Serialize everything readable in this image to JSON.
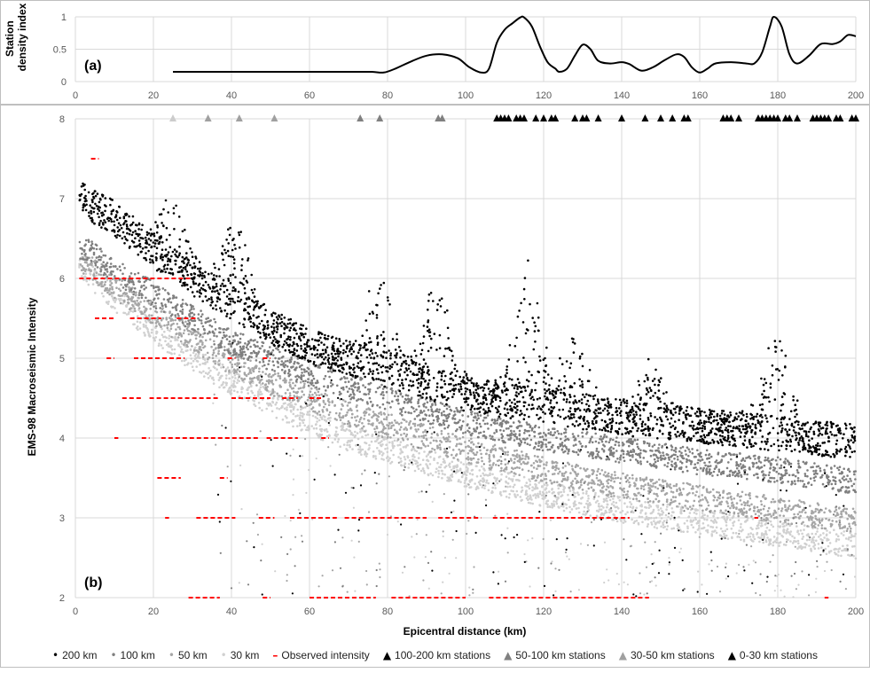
{
  "chart_data": [
    {
      "type": "line",
      "panel_label": "(a)",
      "ylabel_lines": [
        "Station",
        "density index"
      ],
      "xlim": [
        0,
        200
      ],
      "ylim": [
        0,
        1
      ],
      "x_ticks": [
        0,
        20,
        40,
        60,
        80,
        100,
        120,
        140,
        160,
        180,
        200
      ],
      "y_ticks": [
        0,
        0.5,
        1
      ],
      "grid": true,
      "series": [
        {
          "color": "#000000",
          "x": [
            25,
            30,
            40,
            50,
            60,
            70,
            76,
            79,
            82,
            86,
            90,
            94,
            98,
            101,
            104,
            106,
            108,
            110,
            112,
            114,
            115,
            117,
            119,
            121,
            123,
            124,
            126,
            128,
            130,
            132,
            134,
            137,
            140,
            142,
            145,
            148,
            151,
            154,
            156,
            158,
            160,
            162,
            164,
            168,
            172,
            174,
            176,
            178,
            179,
            181,
            183,
            185,
            188,
            191,
            194,
            196,
            198,
            200
          ],
          "y": [
            0.15,
            0.15,
            0.15,
            0.15,
            0.15,
            0.15,
            0.15,
            0.14,
            0.2,
            0.31,
            0.4,
            0.42,
            0.36,
            0.22,
            0.14,
            0.2,
            0.6,
            0.8,
            0.9,
            0.99,
            0.99,
            0.85,
            0.55,
            0.3,
            0.2,
            0.15,
            0.2,
            0.4,
            0.57,
            0.5,
            0.32,
            0.28,
            0.3,
            0.27,
            0.17,
            0.22,
            0.33,
            0.42,
            0.38,
            0.22,
            0.14,
            0.2,
            0.28,
            0.3,
            0.28,
            0.28,
            0.45,
            0.85,
            1.0,
            0.85,
            0.42,
            0.28,
            0.4,
            0.58,
            0.58,
            0.62,
            0.72,
            0.7
          ]
        }
      ]
    },
    {
      "type": "scatter",
      "panel_label": "(b)",
      "xlabel": "Epicentral distance (km)",
      "ylabel": "EMS-98 Macroseismic Intensity",
      "xlim": [
        0,
        200
      ],
      "ylim": [
        2,
        8
      ],
      "x_ticks": [
        0,
        20,
        40,
        60,
        80,
        100,
        120,
        140,
        160,
        180,
        200
      ],
      "y_ticks": [
        2,
        3,
        4,
        5,
        6,
        7,
        8
      ],
      "grid": true,
      "legend_position": "bottom",
      "series": [
        {
          "name": "200 km",
          "marker": "dot",
          "color": "#000000",
          "trend": {
            "x": [
              0,
              10,
              20,
              30,
              40,
              50,
              60,
              70,
              80,
              90,
              100,
              120,
              140,
              160,
              180,
              200
            ],
            "y": [
              7.05,
              6.75,
              6.35,
              6.0,
              5.7,
              5.4,
              5.15,
              5.0,
              4.85,
              4.7,
              4.55,
              4.4,
              4.25,
              4.15,
              4.05,
              3.95
            ]
          },
          "peaks": [
            {
              "x": 25,
              "y": 6.8
            },
            {
              "x": 41,
              "y": 6.7
            },
            {
              "x": 78,
              "y": 6.0
            },
            {
              "x": 93,
              "y": 6.0
            },
            {
              "x": 116,
              "y": 6.1
            },
            {
              "x": 128,
              "y": 5.3
            },
            {
              "x": 148,
              "y": 4.9
            },
            {
              "x": 180,
              "y": 5.4
            }
          ]
        },
        {
          "name": "100 km",
          "marker": "dot",
          "color": "#7f7f7f",
          "trend": {
            "x": [
              0,
              10,
              20,
              30,
              40,
              50,
              60,
              70,
              80,
              90,
              100,
              120,
              140,
              160,
              180,
              200
            ],
            "y": [
              6.45,
              6.1,
              5.8,
              5.5,
              5.2,
              5.0,
              4.8,
              4.65,
              4.5,
              4.35,
              4.2,
              4.0,
              3.85,
              3.7,
              3.6,
              3.45
            ]
          }
        },
        {
          "name": "50 km",
          "marker": "dot",
          "color": "#a6a6a6",
          "trend": {
            "x": [
              0,
              10,
              20,
              30,
              40,
              50,
              60,
              70,
              80,
              90,
              100,
              120,
              140,
              160,
              180,
              200
            ],
            "y": [
              6.3,
              5.9,
              5.55,
              5.25,
              4.95,
              4.7,
              4.5,
              4.3,
              4.15,
              4.0,
              3.85,
              3.6,
              3.4,
              3.25,
              3.1,
              2.95
            ]
          }
        },
        {
          "name": "30 km",
          "marker": "dot",
          "color": "#d0d0d0",
          "trend": {
            "x": [
              0,
              10,
              20,
              30,
              40,
              50,
              60,
              70,
              80,
              90,
              100,
              120,
              140,
              160,
              180,
              200
            ],
            "y": [
              6.2,
              5.75,
              5.35,
              5.0,
              4.7,
              4.45,
              4.2,
              4.0,
              3.85,
              3.7,
              3.55,
              3.3,
              3.1,
              2.95,
              2.8,
              2.65
            ]
          }
        },
        {
          "name": "Observed intensity",
          "marker": "dash",
          "color": "#ff0000",
          "segments": [
            {
              "x": [
                4,
                6
              ],
              "y": 7.5
            },
            {
              "x": [
                1,
                30
              ],
              "y": 6.0
            },
            {
              "x": [
                5,
                10
              ],
              "y": 5.5
            },
            {
              "x": [
                14,
                22
              ],
              "y": 5.5
            },
            {
              "x": [
                26,
                31
              ],
              "y": 5.5
            },
            {
              "x": [
                8,
                10
              ],
              "y": 5.0
            },
            {
              "x": [
                15,
                28
              ],
              "y": 5.0
            },
            {
              "x": [
                39,
                41
              ],
              "y": 5.0
            },
            {
              "x": [
                48,
                50
              ],
              "y": 5.0
            },
            {
              "x": [
                12,
                17
              ],
              "y": 4.5
            },
            {
              "x": [
                19,
                37
              ],
              "y": 4.5
            },
            {
              "x": [
                40,
                50
              ],
              "y": 4.5
            },
            {
              "x": [
                53,
                57
              ],
              "y": 4.5
            },
            {
              "x": [
                60,
                63
              ],
              "y": 4.5
            },
            {
              "x": [
                10,
                11
              ],
              "y": 4.0
            },
            {
              "x": [
                17,
                19
              ],
              "y": 4.0
            },
            {
              "x": [
                22,
                47
              ],
              "y": 4.0
            },
            {
              "x": [
                49,
                57
              ],
              "y": 4.0
            },
            {
              "x": [
                63,
                65
              ],
              "y": 4.0
            },
            {
              "x": [
                21,
                27
              ],
              "y": 3.5
            },
            {
              "x": [
                37,
                39
              ],
              "y": 3.5
            },
            {
              "x": [
                23,
                24
              ],
              "y": 3.0
            },
            {
              "x": [
                31,
                41
              ],
              "y": 3.0
            },
            {
              "x": [
                47,
                51
              ],
              "y": 3.0
            },
            {
              "x": [
                55,
                67
              ],
              "y": 3.0
            },
            {
              "x": [
                69,
                90
              ],
              "y": 3.0
            },
            {
              "x": [
                93,
                104
              ],
              "y": 3.0
            },
            {
              "x": [
                107,
                142
              ],
              "y": 3.0
            },
            {
              "x": [
                174,
                175
              ],
              "y": 3.0
            },
            {
              "x": [
                29,
                37
              ],
              "y": 2.0
            },
            {
              "x": [
                48,
                50
              ],
              "y": 2.0
            },
            {
              "x": [
                60,
                77
              ],
              "y": 2.0
            },
            {
              "x": [
                81,
                100
              ],
              "y": 2.0
            },
            {
              "x": [
                106,
                147
              ],
              "y": 2.0
            },
            {
              "x": [
                192,
                193
              ],
              "y": 2.0
            }
          ]
        },
        {
          "name": "100-200 km stations",
          "marker": "triangle",
          "color": "#000000",
          "x": [
            108,
            109,
            110,
            111,
            113,
            114,
            115,
            118,
            120,
            122,
            123,
            128,
            130,
            131,
            134,
            140,
            146,
            150,
            153,
            156,
            157,
            166,
            167,
            168,
            170,
            175,
            176,
            177,
            178,
            179,
            180,
            182,
            183,
            185,
            189,
            190,
            191,
            192,
            193,
            195,
            196,
            199,
            200
          ],
          "y": 8
        },
        {
          "name": "50-100 km stations",
          "marker": "triangle",
          "color": "#808080",
          "x": [
            73,
            78,
            93,
            94
          ],
          "y": 8
        },
        {
          "name": "30-50 km stations",
          "marker": "triangle",
          "color": "#a0a0a0",
          "x": [
            34,
            42,
            51
          ],
          "y": 8
        },
        {
          "name": "0-30 km stations",
          "marker": "triangle",
          "color": "#cccccc",
          "x": [
            25
          ],
          "y": 8
        }
      ]
    }
  ]
}
